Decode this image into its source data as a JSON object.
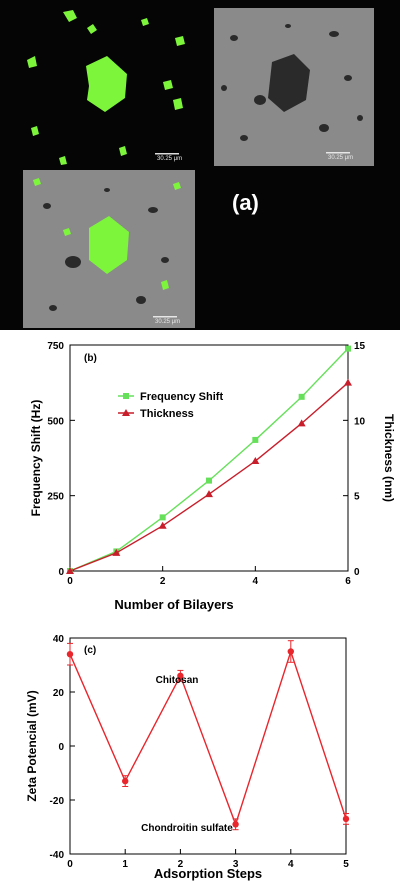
{
  "micrographs": {
    "panel_label": "(a)",
    "scale_bar_labels": [
      "30.25 μm",
      "30.25 μm",
      "30.25 μm"
    ],
    "colors": {
      "fluorescent": "#7cf53b",
      "background_dark": "#050505",
      "surface_gray": "#8a8a8a"
    }
  },
  "chart_data": [
    {
      "type": "line",
      "panel_label": "(b)",
      "xlabel": "Number of Bilayers",
      "ylabel": "Frequency Shift (Hz)",
      "y2label": "Thickness (nm)",
      "xlim": [
        0,
        6
      ],
      "ylim": [
        0,
        750
      ],
      "y2lim": [
        0,
        15
      ],
      "x_ticks": [
        0,
        2,
        4,
        6
      ],
      "y_ticks": [
        0,
        250,
        500,
        750
      ],
      "y2_ticks": [
        0,
        5,
        10,
        15
      ],
      "grid": false,
      "legend": "upper-left",
      "series": [
        {
          "name": "Frequency Shift",
          "axis": "left",
          "color": "#66e05a",
          "marker": "square",
          "x": [
            0,
            1,
            2,
            3,
            4,
            5,
            6
          ],
          "y": [
            0,
            65,
            178,
            300,
            435,
            578,
            738
          ]
        },
        {
          "name": "Thickness",
          "axis": "right",
          "color": "#c81e2b",
          "marker": "triangle",
          "x": [
            0,
            1,
            2,
            3,
            4,
            5,
            6
          ],
          "y": [
            0,
            1.2,
            3.0,
            5.1,
            7.3,
            9.8,
            12.5
          ]
        }
      ]
    },
    {
      "type": "line",
      "panel_label": "(c)",
      "xlabel": "Adsorption Steps",
      "ylabel": "Zeta Potencial (mV)",
      "xlim": [
        0,
        5
      ],
      "ylim": [
        -40,
        40
      ],
      "x_ticks": [
        0,
        1,
        2,
        3,
        4,
        5
      ],
      "y_ticks": [
        -40,
        -20,
        0,
        20,
        40
      ],
      "grid": false,
      "annotations": [
        "Chitosan",
        "Chondroitin sulfate"
      ],
      "series": [
        {
          "color": "#e8262c",
          "x": [
            0,
            1,
            2,
            3,
            4,
            5
          ],
          "y": [
            34,
            -13,
            26,
            -29,
            35,
            -27
          ],
          "error": [
            4,
            2,
            2,
            2,
            4,
            2
          ]
        }
      ]
    }
  ]
}
